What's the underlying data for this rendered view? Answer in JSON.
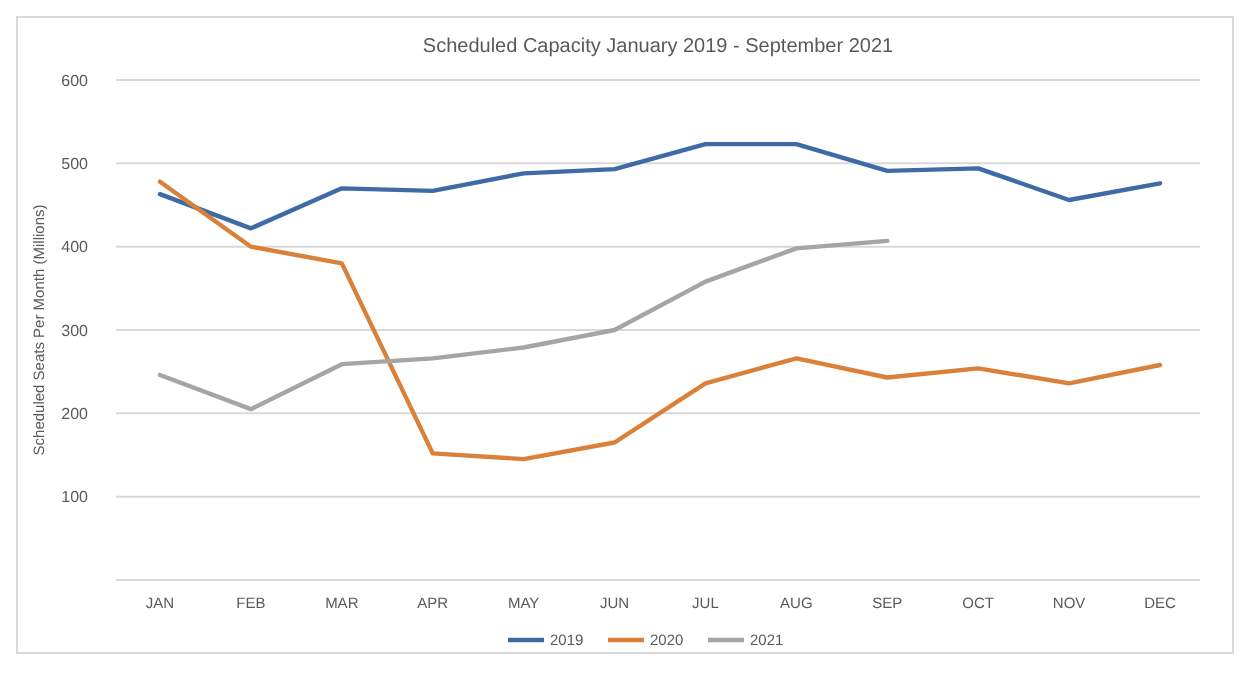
{
  "chart_data": {
    "type": "line",
    "title": "Scheduled Capacity January 2019   - September 2021",
    "ylabel": "Scheduled Seats Per Month (Millions)",
    "categories": [
      "JAN",
      "FEB",
      "MAR",
      "APR",
      "MAY",
      "JUN",
      "JUL",
      "AUG",
      "SEP",
      "OCT",
      "NOV",
      "DEC"
    ],
    "series": [
      {
        "name": "2019",
        "color": "#3e6aa6",
        "values": [
          463,
          422,
          470,
          467,
          488,
          493,
          523,
          523,
          491,
          494,
          456,
          476
        ]
      },
      {
        "name": "2020",
        "color": "#d9813a",
        "values": [
          478,
          400,
          380,
          152,
          145,
          165,
          236,
          266,
          243,
          254,
          236,
          258
        ]
      },
      {
        "name": "2021",
        "color": "#a5a5a5",
        "values": [
          246,
          205,
          259,
          266,
          279,
          300,
          358,
          398,
          407,
          null,
          null,
          null
        ]
      }
    ],
    "ylim": [
      0,
      600
    ],
    "yticks": [
      {
        "value": 0,
        "label": null
      },
      100,
      200,
      300,
      400,
      500,
      600
    ],
    "grid": "y",
    "legend": "bottom",
    "marker": "none",
    "line_style": "solid"
  }
}
